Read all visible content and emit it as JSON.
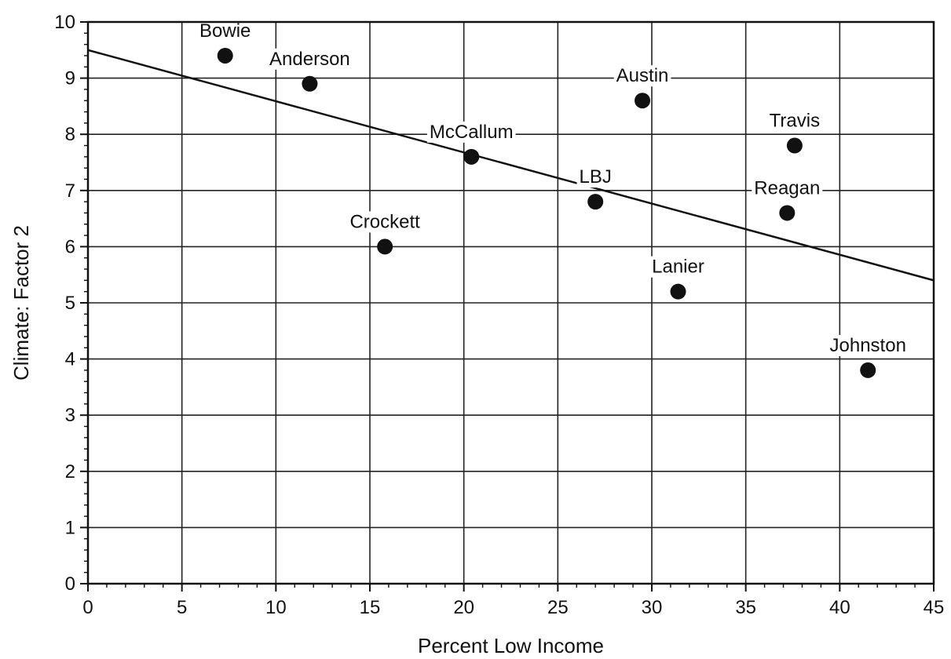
{
  "chart_data": {
    "type": "scatter",
    "title": "",
    "xlabel": "Percent Low Income",
    "ylabel": "Climate: Factor 2",
    "xlim": [
      0,
      45
    ],
    "ylim": [
      0,
      10
    ],
    "x_ticks": [
      0,
      5,
      10,
      15,
      20,
      25,
      30,
      35,
      40,
      45
    ],
    "y_ticks": [
      0,
      1,
      2,
      3,
      4,
      5,
      6,
      7,
      8,
      9,
      10
    ],
    "grid": true,
    "points": [
      {
        "label": "Bowie",
        "x": 7.3,
        "y": 9.4
      },
      {
        "label": "Anderson",
        "x": 11.8,
        "y": 8.9
      },
      {
        "label": "Crockett",
        "x": 15.8,
        "y": 6.0
      },
      {
        "label": "McCallum",
        "x": 20.4,
        "y": 7.6
      },
      {
        "label": "LBJ",
        "x": 27.0,
        "y": 6.8
      },
      {
        "label": "Austin",
        "x": 29.5,
        "y": 8.6
      },
      {
        "label": "Lanier",
        "x": 31.4,
        "y": 5.2
      },
      {
        "label": "Reagan",
        "x": 37.2,
        "y": 6.6
      },
      {
        "label": "Travis",
        "x": 37.6,
        "y": 7.8
      },
      {
        "label": "Johnston",
        "x": 41.5,
        "y": 3.8
      }
    ],
    "trend_line": {
      "x": [
        0,
        45
      ],
      "y": [
        9.5,
        5.4
      ]
    }
  }
}
